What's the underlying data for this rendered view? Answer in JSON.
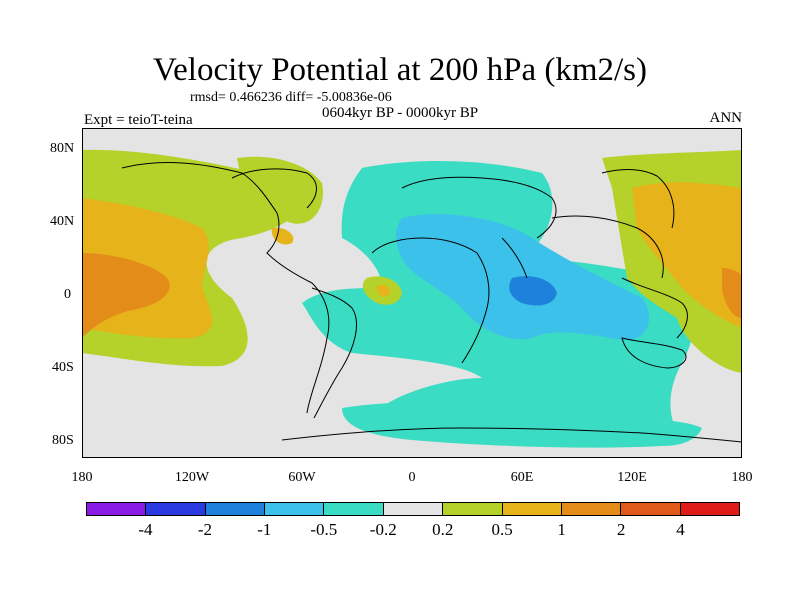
{
  "title": "Velocity Potential at 200 hPa (km2/s)",
  "stats_line": "rmsd= 0.466236 diff= -5.00836e-06",
  "period": "0604kyr BP - 0000kyr BP",
  "experiment": "Expt = teioT-teina",
  "season": "ANN",
  "lat_ticks": [
    "80N",
    "40N",
    "0",
    "40S",
    "80S"
  ],
  "lon_ticks": [
    "180",
    "120W",
    "60W",
    "0",
    "60E",
    "120E",
    "180"
  ],
  "colorbar": {
    "colors": [
      "#8a1be6",
      "#2a3ae0",
      "#1e82dc",
      "#3cc2ea",
      "#3adcc4",
      "#e4e4e4",
      "#b4d22a",
      "#e6b41a",
      "#e48c1a",
      "#e05a18",
      "#e01c18"
    ],
    "labels": [
      "-4",
      "-2",
      "-1",
      "-0.5",
      "-0.2",
      "0.2",
      "0.5",
      "1",
      "2",
      "4"
    ]
  },
  "colors": {
    "neg_strong": "#1e82dc",
    "neg_medium": "#3cc2ea",
    "neg_weak": "#3adcc4",
    "neutral": "#e4e4e4",
    "pos_weak": "#b4d22a",
    "pos_medium": "#e6b41a",
    "pos_strong": "#e48c1a",
    "coast": "#000000"
  }
}
